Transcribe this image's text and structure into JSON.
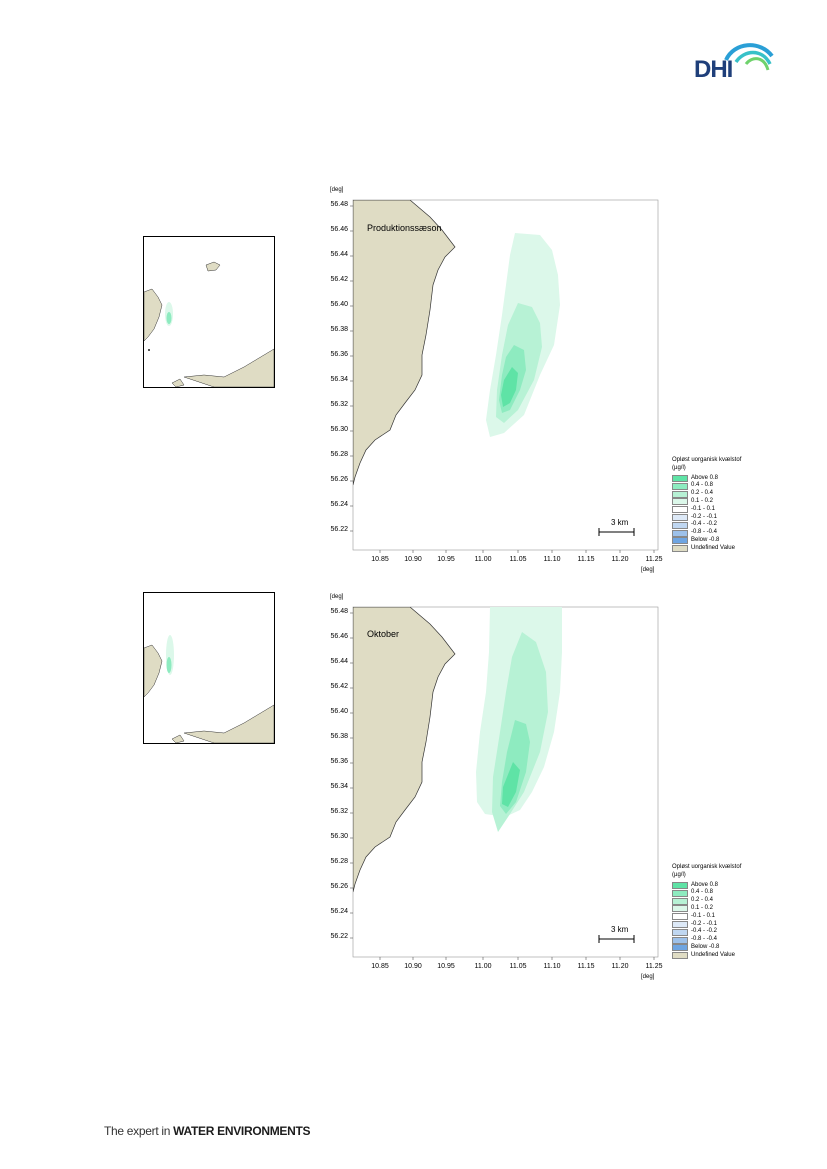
{
  "header": {
    "logo_text": "DHI"
  },
  "footer": {
    "tagline_prefix": "The expert in ",
    "tagline_emphasis": "WATER ENVIRONMENTS"
  },
  "maps": [
    {
      "title": "Produktionssæson",
      "y_unit": "[deg]",
      "x_unit": "[deg]",
      "y_ticks": [
        "56.48",
        "56.46",
        "56.44",
        "56.42",
        "56.40",
        "56.38",
        "56.36",
        "56.34",
        "56.32",
        "56.30",
        "56.28",
        "56.26",
        "56.24",
        "56.22"
      ],
      "x_ticks": [
        "10.85",
        "10.90",
        "10.95",
        "11.00",
        "11.05",
        "11.10",
        "11.15",
        "11.20",
        "11.25"
      ],
      "scale_bar": "3 km",
      "legend": {
        "title_line1": "Opløst uorganisk kvælstof",
        "title_line2": "(µg/l)",
        "items": [
          {
            "label": "Above  0.8",
            "color": "#5fe3a6"
          },
          {
            "label": "0.4 -  0.8",
            "color": "#8eebc0"
          },
          {
            "label": "0.2 -  0.4",
            "color": "#b7f2d5"
          },
          {
            "label": "0.1 -  0.2",
            "color": "#dcf8ea"
          },
          {
            "label": "-0.1 -  0.1",
            "color": "#ffffff"
          },
          {
            "label": "-0.2 - -0.1",
            "color": "#dde9f7"
          },
          {
            "label": "-0.4 - -0.2",
            "color": "#c0d7f1"
          },
          {
            "label": "-0.8 - -0.4",
            "color": "#9dc1ea"
          },
          {
            "label": "Below -0.8",
            "color": "#6fa5e1"
          },
          {
            "label": "Undefined Value",
            "color": "#dfdcc4"
          }
        ]
      }
    },
    {
      "title": "Oktober",
      "y_unit": "[deg]",
      "x_unit": "[deg]",
      "y_ticks": [
        "56.48",
        "56.46",
        "56.44",
        "56.42",
        "56.40",
        "56.38",
        "56.36",
        "56.34",
        "56.32",
        "56.30",
        "56.28",
        "56.26",
        "56.24",
        "56.22"
      ],
      "x_ticks": [
        "10.85",
        "10.90",
        "10.95",
        "11.00",
        "11.05",
        "11.10",
        "11.15",
        "11.20",
        "11.25"
      ],
      "scale_bar": "3 km",
      "legend": {
        "title_line1": "Opløst uorganisk kvælstof",
        "title_line2": "(µg/l)",
        "items": [
          {
            "label": "Above  0.8",
            "color": "#5fe3a6"
          },
          {
            "label": "0.4 -  0.8",
            "color": "#8eebc0"
          },
          {
            "label": "0.2 -  0.4",
            "color": "#b7f2d5"
          },
          {
            "label": "0.1 -  0.2",
            "color": "#dcf8ea"
          },
          {
            "label": "-0.1 -  0.1",
            "color": "#ffffff"
          },
          {
            "label": "-0.2 - -0.1",
            "color": "#dde9f7"
          },
          {
            "label": "-0.4 - -0.2",
            "color": "#c0d7f1"
          },
          {
            "label": "-0.8 - -0.4",
            "color": "#9dc1ea"
          },
          {
            "label": "Below -0.8",
            "color": "#6fa5e1"
          },
          {
            "label": "Undefined Value",
            "color": "#dfdcc4"
          }
        ]
      }
    }
  ],
  "colors": {
    "land": "#dfdcc4",
    "plume_level1": "#dcf8ea",
    "plume_level2": "#b7f2d5",
    "plume_level3": "#8eebc0",
    "plume_level4": "#5fe3a6"
  }
}
